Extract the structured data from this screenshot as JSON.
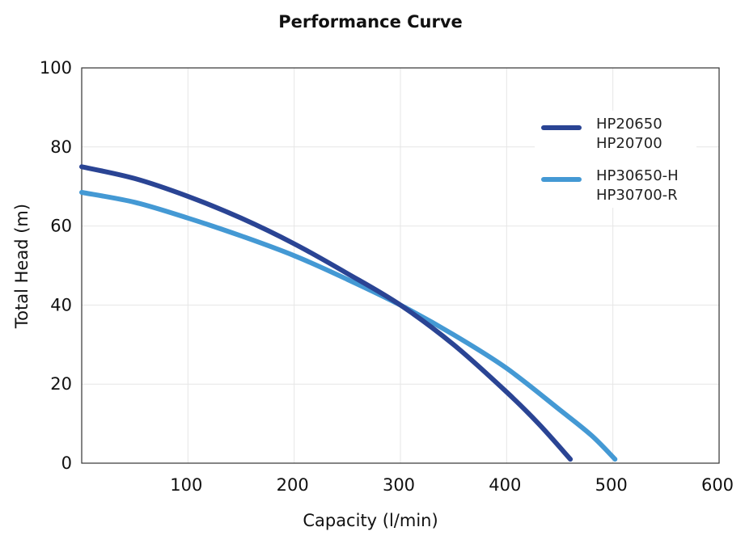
{
  "chart_data": {
    "type": "line",
    "title": "Performance Curve",
    "xlabel": "Capacity (l/min)",
    "ylabel": "Total Head (m)",
    "xlim": [
      0,
      600
    ],
    "ylim": [
      0,
      100
    ],
    "xticks": [
      "100",
      "200",
      "300",
      "400",
      "500",
      "600"
    ],
    "yticks": [
      "0",
      "20",
      "40",
      "60",
      "80",
      "100"
    ],
    "grid": true,
    "legend_position": "top-right",
    "series": [
      {
        "name": "HP20650\nHP20700",
        "legend_lines": [
          "HP20650",
          "HP20700"
        ],
        "color": "#2a4494",
        "x": [
          0,
          50,
          100,
          150,
          200,
          250,
          300,
          350,
          400,
          430,
          460
        ],
        "y": [
          75,
          72,
          67.5,
          62,
          55.5,
          48,
          40,
          30,
          18,
          10,
          1
        ]
      },
      {
        "name": "HP30650-H\nHP30700-R",
        "legend_lines": [
          "HP30650-H",
          "HP30700-R"
        ],
        "color": "#4499d4",
        "x": [
          0,
          50,
          100,
          150,
          200,
          250,
          300,
          350,
          400,
          450,
          480,
          502
        ],
        "y": [
          68.5,
          66,
          62,
          57.5,
          52.5,
          46.5,
          40,
          32.5,
          24,
          13.5,
          7,
          1
        ]
      }
    ]
  }
}
